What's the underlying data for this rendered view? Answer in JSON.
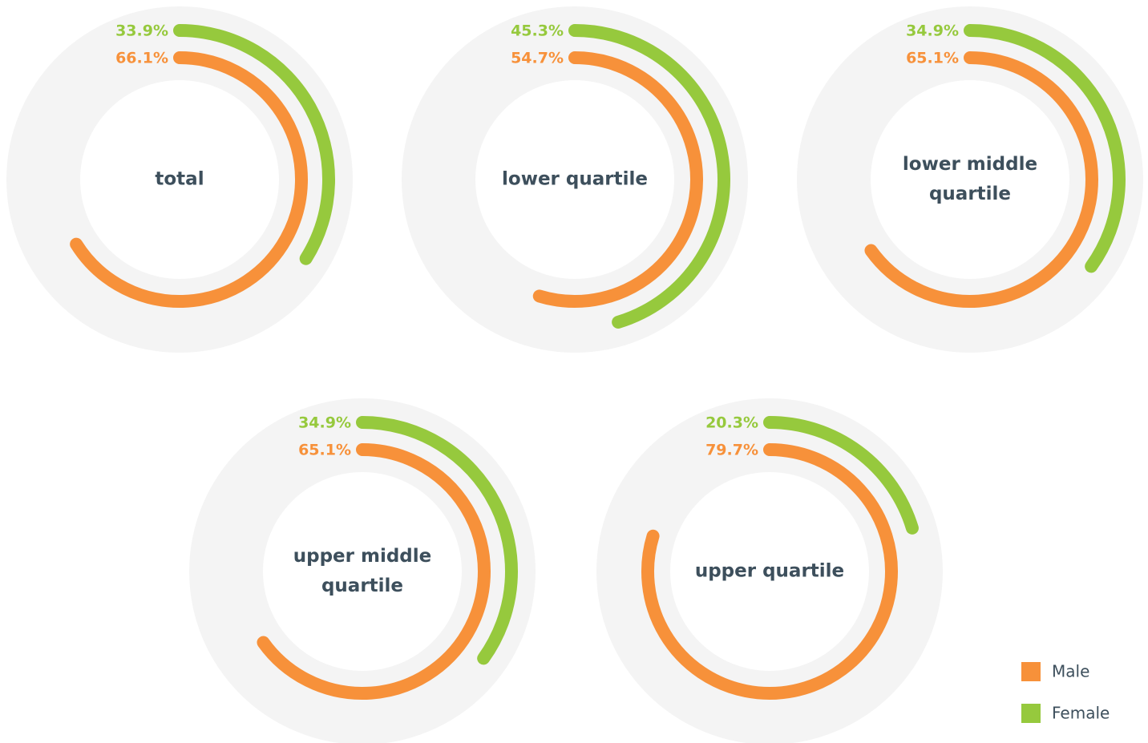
{
  "chart_data": {
    "type": "radial_bar",
    "categories": [
      "total",
      "lower quartile",
      "lower middle quartile",
      "upper middle quartile",
      "upper quartile"
    ],
    "ylim": [
      0,
      100
    ],
    "series": [
      {
        "name": "Male",
        "color": "#f7913a",
        "values": [
          66.1,
          54.7,
          65.1,
          65.1,
          79.7
        ],
        "value_labels": [
          "66.1%",
          "54.7%",
          "65.1%",
          "65.1%",
          "79.7%"
        ]
      },
      {
        "name": "Female",
        "color": "#96c93d",
        "values": [
          33.9,
          45.3,
          34.9,
          34.9,
          20.3
        ],
        "value_labels": [
          "33.9%",
          "45.3%",
          "34.9%",
          "34.9%",
          "20.3%"
        ]
      }
    ]
  }
}
